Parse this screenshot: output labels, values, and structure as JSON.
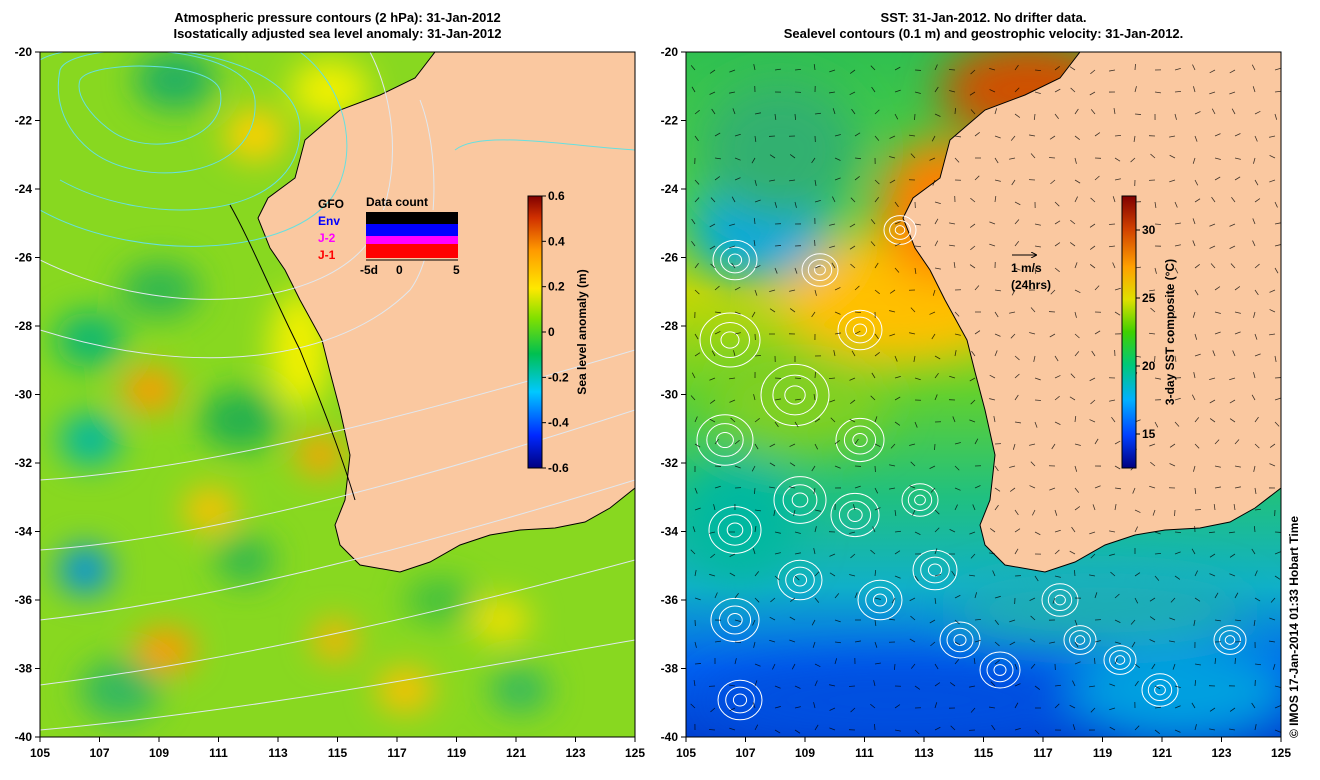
{
  "left_map": {
    "title_line1": "Atmospheric pressure contours (2 hPa): 31-Jan-2012",
    "title_line2": "Isostatically adjusted sea level anomaly: 31-Jan-2012",
    "lon_ticks": [
      "105",
      "107",
      "109",
      "111",
      "113",
      "115",
      "117",
      "119",
      "121",
      "123",
      "125"
    ],
    "lat_ticks": [
      "-20",
      "-22",
      "-24",
      "-26",
      "-28",
      "-30",
      "-32",
      "-34",
      "-36",
      "-38",
      "-40"
    ],
    "colorbar": {
      "label": "Sea level anomaly (m)",
      "ticks": [
        "0.6",
        "0.4",
        "0.2",
        "0",
        "-0.2",
        "-0.4",
        "-0.6"
      ],
      "range": [
        -0.6,
        0.6
      ]
    },
    "legend": {
      "title": "Data count",
      "sources": [
        {
          "label": "GFO",
          "color": "#000000"
        },
        {
          "label": "Env",
          "color": "#0000ff"
        },
        {
          "label": "J-2",
          "color": "#ff00ff"
        },
        {
          "label": "J-1",
          "color": "#ff0000"
        }
      ],
      "axis_left": "-5d",
      "axis_mid": "0",
      "axis_right": "5"
    }
  },
  "right_map": {
    "title_line1": "SST: 31-Jan-2012. No drifter data.",
    "title_line2": "Sealevel contours (0.1 m) and geostrophic velocity: 31-Jan-2012.",
    "lon_ticks": [
      "105",
      "107",
      "109",
      "111",
      "113",
      "115",
      "117",
      "119",
      "121",
      "123",
      "125"
    ],
    "lat_ticks": [
      "-20",
      "-22",
      "-24",
      "-26",
      "-28",
      "-30",
      "-32",
      "-34",
      "-36",
      "-38",
      "-40"
    ],
    "colorbar": {
      "label": "3-day SST composite (°C)",
      "ticks": [
        "30",
        "25",
        "20",
        "15"
      ],
      "range": [
        12.5,
        32.5
      ]
    },
    "velocity_scale": {
      "label_speed": "1 m/s",
      "label_time": "(24hrs)"
    }
  },
  "credit": "© IMOS 17-Jan-2014 01:33 Hobart Time",
  "colors": {
    "land": "#fac8a0",
    "coastline": "#000000",
    "pressure_contour": "#66e0e0",
    "white_contour": "#ffffff"
  }
}
